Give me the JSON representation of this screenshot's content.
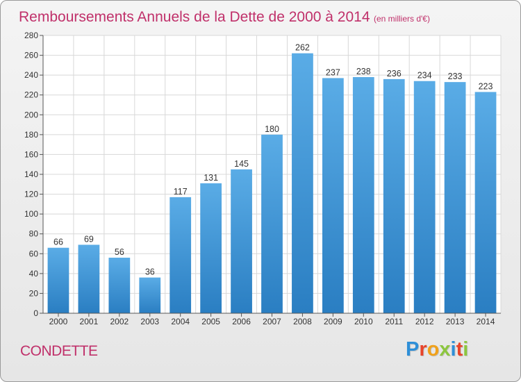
{
  "chart_data": {
    "type": "bar",
    "title": "Remboursements Annuels de la Dette de 2000 à 2014",
    "unit_label": "(en milliers d'€)",
    "categories": [
      "2000",
      "2001",
      "2002",
      "2003",
      "2004",
      "2005",
      "2006",
      "2007",
      "2008",
      "2009",
      "2010",
      "2011",
      "2012",
      "2013",
      "2014"
    ],
    "values": [
      66,
      69,
      56,
      36,
      117,
      131,
      145,
      180,
      262,
      237,
      238,
      236,
      234,
      233,
      223
    ],
    "ylim": [
      0,
      280
    ],
    "yticks": [
      0,
      20,
      40,
      60,
      80,
      100,
      120,
      140,
      160,
      180,
      200,
      220,
      240,
      260,
      280
    ],
    "grid": true,
    "xlabel": "",
    "ylabel": ""
  },
  "commune": "CONDETTE",
  "logo": {
    "letters": [
      "P",
      "r",
      "o",
      "x",
      "i",
      "t",
      "i"
    ],
    "colors": [
      "#2e8fd8",
      "#e8442a",
      "#f0a11a",
      "#8cc63f",
      "#2e8fd8",
      "#e8442a",
      "#8cc63f"
    ]
  },
  "colors": {
    "bar_top": "#5aace6",
    "bar_bottom": "#2a7ec2",
    "accent": "#c0306a"
  }
}
